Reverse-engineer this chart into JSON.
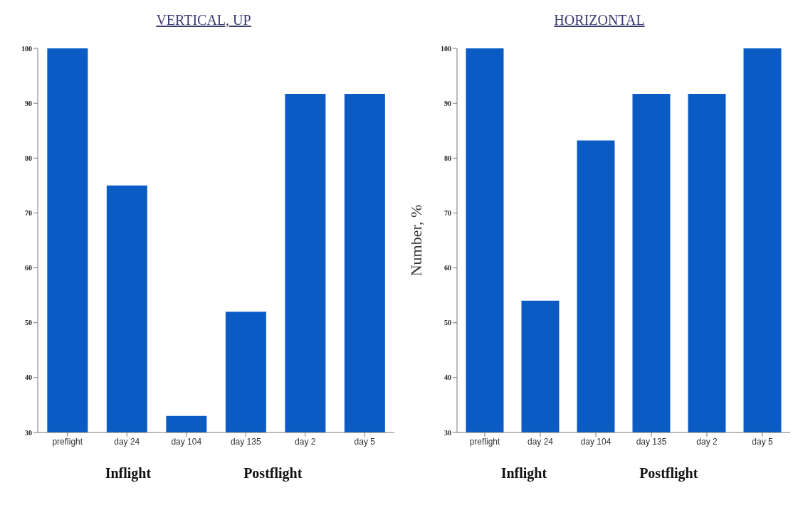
{
  "chart_data": [
    {
      "type": "bar",
      "title": "VERTICAL, UP",
      "categories": [
        "preflight",
        "day 24",
        "day 104",
        "day 135",
        "day 2",
        "day 5"
      ],
      "values": [
        100,
        75,
        33,
        52,
        91.7,
        91.7
      ],
      "color": "#0a5cc4",
      "ylim": [
        30,
        100
      ],
      "yticks": [
        30,
        40,
        50,
        60,
        70,
        80,
        90,
        100
      ],
      "grid": false,
      "annotations": [
        "Inflight",
        "Postflight"
      ]
    },
    {
      "type": "bar",
      "title": "HORIZONTAL",
      "ylabel": "Number, %",
      "categories": [
        "preflight",
        "day 24",
        "day 104",
        "day 135",
        "day 2",
        "day 5"
      ],
      "values": [
        100,
        54,
        83.2,
        91.7,
        91.7,
        100
      ],
      "color": "#0a5cc4",
      "ylim": [
        30,
        100
      ],
      "yticks": [
        30,
        40,
        50,
        60,
        70,
        80,
        90,
        100
      ],
      "grid": false,
      "annotations": [
        "Inflight",
        "Postflight"
      ]
    }
  ]
}
